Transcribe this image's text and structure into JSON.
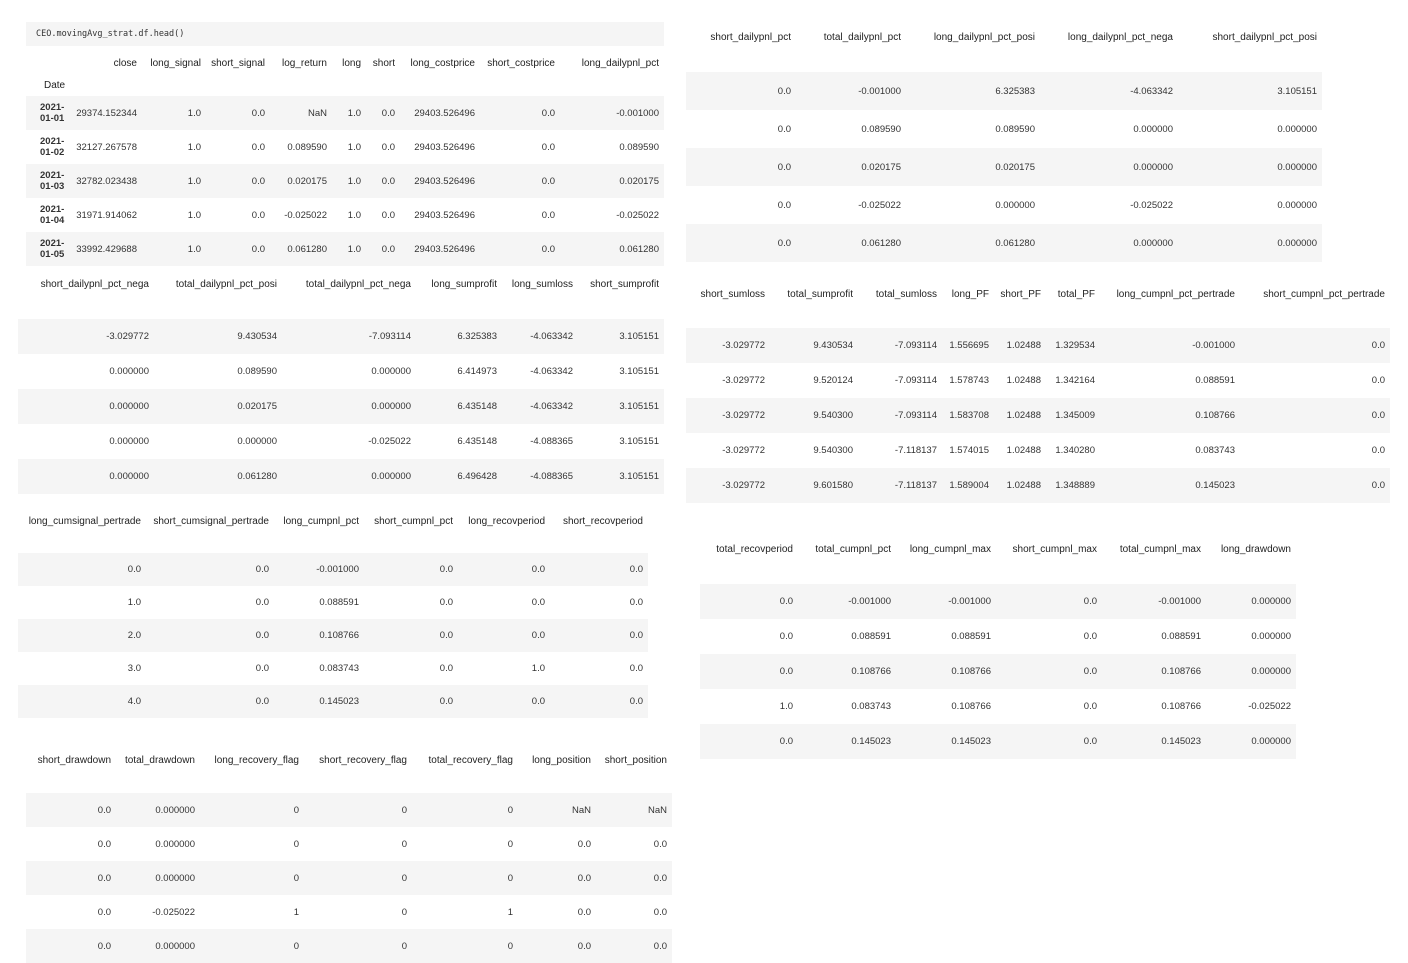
{
  "code_cell": "CEO.movingAvg_strat.df.head()",
  "index_name": "Date",
  "dates": [
    "2021-01-01",
    "2021-01-02",
    "2021-01-03",
    "2021-01-04",
    "2021-01-05"
  ],
  "tables": [
    {
      "id": "t1",
      "columns": [
        "close",
        "long_signal",
        "short_signal",
        "log_return",
        "long",
        "short",
        "long_costprice",
        "short_costprice",
        "long_dailypnl_pct"
      ],
      "rows": [
        [
          "29374.152344",
          "1.0",
          "0.0",
          "NaN",
          "1.0",
          "0.0",
          "29403.526496",
          "0.0",
          "-0.001000"
        ],
        [
          "32127.267578",
          "1.0",
          "0.0",
          "0.089590",
          "1.0",
          "0.0",
          "29403.526496",
          "0.0",
          "0.089590"
        ],
        [
          "32782.023438",
          "1.0",
          "0.0",
          "0.020175",
          "1.0",
          "0.0",
          "29403.526496",
          "0.0",
          "0.020175"
        ],
        [
          "31971.914062",
          "1.0",
          "0.0",
          "-0.025022",
          "1.0",
          "0.0",
          "29403.526496",
          "0.0",
          "-0.025022"
        ],
        [
          "33992.429688",
          "1.0",
          "0.0",
          "0.061280",
          "1.0",
          "0.0",
          "29403.526496",
          "0.0",
          "0.061280"
        ]
      ]
    },
    {
      "id": "t2",
      "columns": [
        "short_dailypnl_pct",
        "total_dailypnl_pct",
        "long_dailypnl_pct_posi",
        "long_dailypnl_pct_nega",
        "short_dailypnl_pct_posi"
      ],
      "rows": [
        [
          "0.0",
          "-0.001000",
          "6.325383",
          "-4.063342",
          "3.105151"
        ],
        [
          "0.0",
          "0.089590",
          "0.089590",
          "0.000000",
          "0.000000"
        ],
        [
          "0.0",
          "0.020175",
          "0.020175",
          "0.000000",
          "0.000000"
        ],
        [
          "0.0",
          "-0.025022",
          "0.000000",
          "-0.025022",
          "0.000000"
        ],
        [
          "0.0",
          "0.061280",
          "0.061280",
          "0.000000",
          "0.000000"
        ]
      ]
    },
    {
      "id": "t3",
      "columns": [
        "short_dailypnl_pct_nega",
        "total_dailypnl_pct_posi",
        "total_dailypnl_pct_nega",
        "long_sumprofit",
        "long_sumloss",
        "short_sumprofit"
      ],
      "rows": [
        [
          "-3.029772",
          "9.430534",
          "-7.093114",
          "6.325383",
          "-4.063342",
          "3.105151"
        ],
        [
          "0.000000",
          "0.089590",
          "0.000000",
          "6.414973",
          "-4.063342",
          "3.105151"
        ],
        [
          "0.000000",
          "0.020175",
          "0.000000",
          "6.435148",
          "-4.063342",
          "3.105151"
        ],
        [
          "0.000000",
          "0.000000",
          "-0.025022",
          "6.435148",
          "-4.088365",
          "3.105151"
        ],
        [
          "0.000000",
          "0.061280",
          "0.000000",
          "6.496428",
          "-4.088365",
          "3.105151"
        ]
      ]
    },
    {
      "id": "t4",
      "columns": [
        "short_sumloss",
        "total_sumprofit",
        "total_sumloss",
        "long_PF",
        "short_PF",
        "total_PF",
        "long_cumpnl_pct_pertrade",
        "short_cumpnl_pct_pertrade"
      ],
      "rows": [
        [
          "-3.029772",
          "9.430534",
          "-7.093114",
          "1.556695",
          "1.02488",
          "1.329534",
          "-0.001000",
          "0.0"
        ],
        [
          "-3.029772",
          "9.520124",
          "-7.093114",
          "1.578743",
          "1.02488",
          "1.342164",
          "0.088591",
          "0.0"
        ],
        [
          "-3.029772",
          "9.540300",
          "-7.093114",
          "1.583708",
          "1.02488",
          "1.345009",
          "0.108766",
          "0.0"
        ],
        [
          "-3.029772",
          "9.540300",
          "-7.118137",
          "1.574015",
          "1.02488",
          "1.340280",
          "0.083743",
          "0.0"
        ],
        [
          "-3.029772",
          "9.601580",
          "-7.118137",
          "1.589004",
          "1.02488",
          "1.348889",
          "0.145023",
          "0.0"
        ]
      ]
    },
    {
      "id": "t5",
      "columns": [
        "long_cumsignal_pertrade",
        "short_cumsignal_pertrade",
        "long_cumpnl_pct",
        "short_cumpnl_pct",
        "long_recovperiod",
        "short_recovperiod"
      ],
      "rows": [
        [
          "0.0",
          "0.0",
          "-0.001000",
          "0.0",
          "0.0",
          "0.0"
        ],
        [
          "1.0",
          "0.0",
          "0.088591",
          "0.0",
          "0.0",
          "0.0"
        ],
        [
          "2.0",
          "0.0",
          "0.108766",
          "0.0",
          "0.0",
          "0.0"
        ],
        [
          "3.0",
          "0.0",
          "0.083743",
          "0.0",
          "1.0",
          "0.0"
        ],
        [
          "4.0",
          "0.0",
          "0.145023",
          "0.0",
          "0.0",
          "0.0"
        ]
      ]
    },
    {
      "id": "t6",
      "columns": [
        "total_recovperiod",
        "total_cumpnl_pct",
        "long_cumpnl_max",
        "short_cumpnl_max",
        "total_cumpnl_max",
        "long_drawdown"
      ],
      "rows": [
        [
          "0.0",
          "-0.001000",
          "-0.001000",
          "0.0",
          "-0.001000",
          "0.000000"
        ],
        [
          "0.0",
          "0.088591",
          "0.088591",
          "0.0",
          "0.088591",
          "0.000000"
        ],
        [
          "0.0",
          "0.108766",
          "0.108766",
          "0.0",
          "0.108766",
          "0.000000"
        ],
        [
          "1.0",
          "0.083743",
          "0.108766",
          "0.0",
          "0.108766",
          "-0.025022"
        ],
        [
          "0.0",
          "0.145023",
          "0.145023",
          "0.0",
          "0.145023",
          "0.000000"
        ]
      ]
    },
    {
      "id": "t7",
      "columns": [
        "short_drawdown",
        "total_drawdown",
        "long_recovery_flag",
        "short_recovery_flag",
        "total_recovery_flag",
        "long_position",
        "short_position"
      ],
      "rows": [
        [
          "0.0",
          "0.000000",
          "0",
          "0",
          "0",
          "NaN",
          "NaN"
        ],
        [
          "0.0",
          "0.000000",
          "0",
          "0",
          "0",
          "0.0",
          "0.0"
        ],
        [
          "0.0",
          "0.000000",
          "0",
          "0",
          "0",
          "0.0",
          "0.0"
        ],
        [
          "0.0",
          "-0.025022",
          "1",
          "0",
          "1",
          "0.0",
          "0.0"
        ],
        [
          "0.0",
          "0.000000",
          "0",
          "0",
          "0",
          "0.0",
          "0.0"
        ]
      ]
    }
  ]
}
